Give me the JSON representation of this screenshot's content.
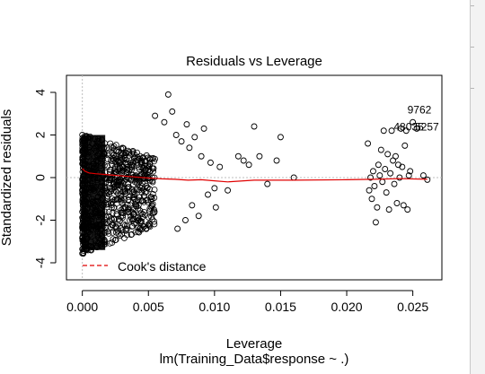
{
  "chart_data": {
    "type": "scatter",
    "title": "Residuals vs Leverage",
    "xlabel": "Leverage",
    "subtitle": "lm(Training_Data$response ~ .)",
    "ylabel": "Standardized residuals",
    "xlim": [
      -0.0012,
      0.0272
    ],
    "ylim": [
      -4.8,
      4.8
    ],
    "x_ticks": [
      0.0,
      0.005,
      0.01,
      0.015,
      0.02,
      0.025
    ],
    "x_tick_labels": [
      "0.000",
      "0.005",
      "0.010",
      "0.015",
      "0.020",
      "0.025"
    ],
    "y_ticks": [
      -4,
      -2,
      0,
      2,
      4
    ],
    "y_tick_labels": [
      "-4",
      "-2",
      "0",
      "2",
      "4"
    ],
    "dense_cloud": {
      "x_range": [
        0.0,
        0.0055
      ],
      "y_range": [
        -3.6,
        2.2
      ]
    },
    "scattered_points": [
      [
        0.0055,
        2.9
      ],
      [
        0.0062,
        2.6
      ],
      [
        0.0065,
        3.9
      ],
      [
        0.0068,
        3.1
      ],
      [
        0.0071,
        2.0
      ],
      [
        0.0072,
        -2.4
      ],
      [
        0.0075,
        1.7
      ],
      [
        0.0078,
        -2.0
      ],
      [
        0.0079,
        2.5
      ],
      [
        0.0081,
        1.4
      ],
      [
        0.0083,
        -1.3
      ],
      [
        0.0085,
        1.9
      ],
      [
        0.0088,
        -1.8
      ],
      [
        0.009,
        1.0
      ],
      [
        0.0092,
        2.3
      ],
      [
        0.0095,
        -0.8
      ],
      [
        0.0097,
        0.7
      ],
      [
        0.01,
        -0.5
      ],
      [
        0.0101,
        -1.4
      ],
      [
        0.0104,
        0.5
      ],
      [
        0.011,
        -0.6
      ],
      [
        0.0118,
        1.0
      ],
      [
        0.0122,
        0.8
      ],
      [
        0.0126,
        0.6
      ],
      [
        0.013,
        2.4
      ],
      [
        0.0134,
        1.0
      ],
      [
        0.014,
        -0.3
      ],
      [
        0.0147,
        0.8
      ],
      [
        0.015,
        1.9
      ],
      [
        0.016,
        0.0
      ],
      [
        0.0216,
        1.6
      ],
      [
        0.0217,
        -0.6
      ],
      [
        0.0218,
        0.0
      ],
      [
        0.0219,
        -1.0
      ],
      [
        0.022,
        0.3
      ],
      [
        0.0221,
        -0.4
      ],
      [
        0.0222,
        -2.1
      ],
      [
        0.0223,
        -1.4
      ],
      [
        0.0224,
        0.6
      ],
      [
        0.0225,
        0.1
      ],
      [
        0.0226,
        1.3
      ],
      [
        0.0227,
        -0.2
      ],
      [
        0.0228,
        2.2
      ],
      [
        0.0229,
        0.4
      ],
      [
        0.023,
        -0.7
      ],
      [
        0.0231,
        1.1
      ],
      [
        0.0232,
        -1.5
      ],
      [
        0.0233,
        0.2
      ],
      [
        0.0234,
        2.2
      ],
      [
        0.0235,
        0.8
      ],
      [
        0.0236,
        -0.3
      ],
      [
        0.0237,
        1.0
      ],
      [
        0.0238,
        -1.2
      ],
      [
        0.0239,
        0.6
      ],
      [
        0.024,
        0.0
      ],
      [
        0.0241,
        2.3
      ],
      [
        0.0242,
        0.5
      ],
      [
        0.0243,
        -1.3
      ],
      [
        0.0244,
        1.5
      ],
      [
        0.0245,
        2.2
      ],
      [
        0.0246,
        -1.5
      ],
      [
        0.0247,
        0.1
      ],
      [
        0.0248,
        0.3
      ],
      [
        0.025,
        2.6
      ],
      [
        0.0253,
        2.3
      ],
      [
        0.0258,
        0.1
      ],
      [
        0.0261,
        -0.1
      ]
    ],
    "labeled_points": [
      {
        "label": "9762",
        "x": 0.025,
        "y": 2.6
      },
      {
        "label": "48035",
        "x": 0.0241,
        "y": 2.3
      },
      {
        "label": "5257",
        "x": 0.0253,
        "y": 2.3
      }
    ],
    "smoother": [
      [
        0.0,
        0.42
      ],
      [
        0.0002,
        0.3
      ],
      [
        0.0005,
        0.22
      ],
      [
        0.001,
        0.18
      ],
      [
        0.002,
        0.13
      ],
      [
        0.003,
        0.08
      ],
      [
        0.004,
        0.03
      ],
      [
        0.005,
        -0.02
      ],
      [
        0.006,
        -0.06
      ],
      [
        0.007,
        -0.08
      ],
      [
        0.008,
        -0.12
      ],
      [
        0.009,
        -0.1
      ],
      [
        0.01,
        -0.15
      ],
      [
        0.011,
        -0.2
      ],
      [
        0.013,
        -0.12
      ],
      [
        0.016,
        -0.12
      ],
      [
        0.02,
        -0.1
      ],
      [
        0.022,
        -0.08
      ],
      [
        0.024,
        -0.05
      ],
      [
        0.0261,
        -0.08
      ]
    ],
    "legend": {
      "label": "Cook's distance",
      "position": "bottom-left"
    },
    "grid": false,
    "colors": {
      "points": "#000000",
      "smoother": "#e00000",
      "cooks": "#e00000",
      "reference": "#bdbdbd"
    }
  }
}
